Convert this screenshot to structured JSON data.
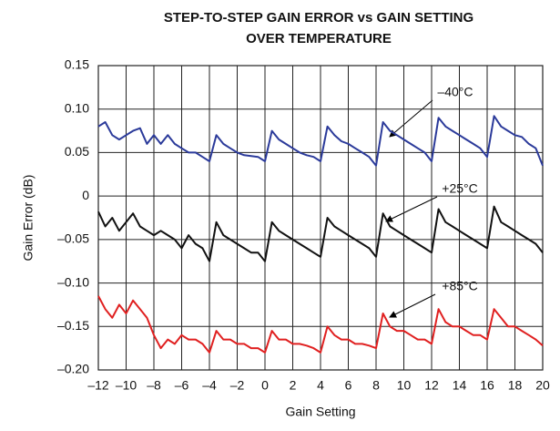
{
  "chart_data": {
    "type": "line",
    "title": [
      "STEP-TO-STEP GAIN ERROR vs GAIN SETTING",
      "OVER TEMPERATURE"
    ],
    "x_label": "Gain Setting",
    "y_label": "Gain Error (dB)",
    "x": [
      -12,
      -11.5,
      -11,
      -10.5,
      -10,
      -9.5,
      -9,
      -8.5,
      -8,
      -7.5,
      -7,
      -6.5,
      -6,
      -5.5,
      -5,
      -4.5,
      -4,
      -3.5,
      -3,
      -2.5,
      -2,
      -1.5,
      -1,
      -0.5,
      0,
      0.5,
      1,
      1.5,
      2,
      2.5,
      3,
      3.5,
      4,
      4.5,
      5,
      5.5,
      6,
      6.5,
      7,
      7.5,
      8,
      8.5,
      9,
      9.5,
      10,
      10.5,
      11,
      11.5,
      12,
      12.5,
      13,
      13.5,
      14,
      14.5,
      15,
      15.5,
      16,
      16.5,
      17,
      17.5,
      18,
      18.5,
      19,
      19.5,
      20
    ],
    "series": [
      {
        "name": "–40°C",
        "color": "#2b3a9a",
        "values": [
          0.08,
          0.085,
          0.07,
          0.065,
          0.07,
          0.075,
          0.078,
          0.06,
          0.07,
          0.06,
          0.07,
          0.06,
          0.055,
          0.05,
          0.05,
          0.045,
          0.04,
          0.07,
          0.06,
          0.055,
          0.05,
          0.047,
          0.046,
          0.045,
          0.04,
          0.075,
          0.065,
          0.06,
          0.055,
          0.05,
          0.047,
          0.045,
          0.04,
          0.08,
          0.07,
          0.063,
          0.06,
          0.055,
          0.05,
          0.045,
          0.035,
          0.085,
          0.075,
          0.07,
          0.065,
          0.06,
          0.055,
          0.05,
          0.04,
          0.09,
          0.08,
          0.075,
          0.07,
          0.065,
          0.06,
          0.055,
          0.045,
          0.092,
          0.08,
          0.075,
          0.07,
          0.068,
          0.06,
          0.055,
          0.035
        ]
      },
      {
        "name": "+25°C",
        "color": "#111111",
        "values": [
          -0.018,
          -0.035,
          -0.025,
          -0.04,
          -0.03,
          -0.02,
          -0.035,
          -0.04,
          -0.045,
          -0.04,
          -0.045,
          -0.05,
          -0.06,
          -0.045,
          -0.055,
          -0.06,
          -0.075,
          -0.03,
          -0.045,
          -0.05,
          -0.055,
          -0.06,
          -0.065,
          -0.065,
          -0.075,
          -0.03,
          -0.04,
          -0.045,
          -0.05,
          -0.055,
          -0.06,
          -0.065,
          -0.07,
          -0.025,
          -0.035,
          -0.04,
          -0.045,
          -0.05,
          -0.055,
          -0.06,
          -0.07,
          -0.02,
          -0.035,
          -0.04,
          -0.045,
          -0.05,
          -0.055,
          -0.06,
          -0.065,
          -0.015,
          -0.03,
          -0.035,
          -0.04,
          -0.045,
          -0.05,
          -0.055,
          -0.06,
          -0.012,
          -0.03,
          -0.035,
          -0.04,
          -0.045,
          -0.05,
          -0.055,
          -0.065
        ]
      },
      {
        "name": "+85°C",
        "color": "#e02020",
        "values": [
          -0.115,
          -0.13,
          -0.14,
          -0.125,
          -0.135,
          -0.12,
          -0.13,
          -0.14,
          -0.16,
          -0.175,
          -0.165,
          -0.17,
          -0.16,
          -0.165,
          -0.165,
          -0.17,
          -0.18,
          -0.155,
          -0.165,
          -0.165,
          -0.17,
          -0.17,
          -0.175,
          -0.175,
          -0.18,
          -0.155,
          -0.165,
          -0.165,
          -0.17,
          -0.17,
          -0.172,
          -0.175,
          -0.18,
          -0.15,
          -0.16,
          -0.165,
          -0.165,
          -0.17,
          -0.17,
          -0.172,
          -0.175,
          -0.135,
          -0.15,
          -0.155,
          -0.155,
          -0.16,
          -0.165,
          -0.165,
          -0.17,
          -0.13,
          -0.145,
          -0.15,
          -0.15,
          -0.155,
          -0.16,
          -0.16,
          -0.165,
          -0.13,
          -0.14,
          -0.15,
          -0.15,
          -0.155,
          -0.16,
          -0.165,
          -0.172
        ]
      }
    ],
    "xlim": [
      -12,
      20
    ],
    "xticks": [
      {
        "value": -12,
        "label": "–12"
      },
      {
        "value": -10,
        "label": "–10"
      },
      {
        "value": -8,
        "label": "–8"
      },
      {
        "value": -6,
        "label": "–6"
      },
      {
        "value": -4,
        "label": "–4"
      },
      {
        "value": -2,
        "label": "–2"
      },
      0,
      2,
      4,
      6,
      8,
      10,
      12,
      14,
      16,
      18,
      20
    ],
    "ylim": [
      -0.2,
      0.15
    ],
    "yticks": [
      {
        "value": -0.2,
        "label": "–0.20"
      },
      {
        "value": -0.15,
        "label": "–0.15"
      },
      {
        "value": -0.1,
        "label": "–0.10"
      },
      {
        "value": -0.05,
        "label": "–0.05"
      },
      0,
      0.05,
      {
        "value": 0.1,
        "label": "0.10"
      },
      0.15
    ],
    "grid": true
  }
}
